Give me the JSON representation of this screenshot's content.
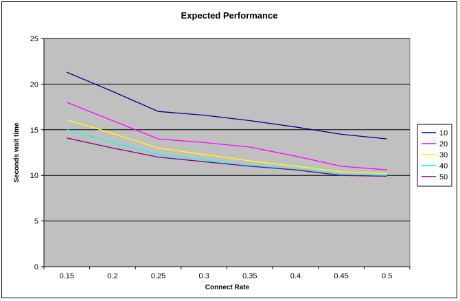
{
  "chart_data": {
    "type": "line",
    "title": "Expected Performance",
    "xlabel": "Connect Rate",
    "ylabel": "Seconds wait time",
    "categories": [
      "0.15",
      "0.2",
      "0.25",
      "0.3",
      "0.35",
      "0.4",
      "0.45",
      "0.5"
    ],
    "ylim": [
      0,
      25
    ],
    "yticks": [
      0,
      5,
      10,
      15,
      20,
      25
    ],
    "grid": true,
    "plot_background": "#C0C0C0",
    "legend_position": "right",
    "series": [
      {
        "name": "10",
        "color": "#000080",
        "values": [
          21.3,
          19.2,
          17.0,
          16.6,
          16.0,
          15.3,
          14.5,
          14.0
        ]
      },
      {
        "name": "20",
        "color": "#FF00FF",
        "values": [
          18.0,
          16.0,
          14.0,
          13.6,
          13.1,
          12.1,
          11.0,
          10.6
        ]
      },
      {
        "name": "30",
        "color": "#FFFF00",
        "values": [
          16.1,
          14.6,
          13.0,
          12.3,
          11.6,
          11.0,
          10.4,
          10.2
        ]
      },
      {
        "name": "40",
        "color": "#00FFFF",
        "values": [
          15.0,
          13.6,
          12.3,
          11.7,
          11.1,
          10.7,
          10.1,
          10.0
        ]
      },
      {
        "name": "50",
        "color": "#800080",
        "values": [
          14.1,
          13.0,
          12.0,
          11.5,
          11.0,
          10.6,
          10.0,
          9.9
        ]
      }
    ]
  }
}
